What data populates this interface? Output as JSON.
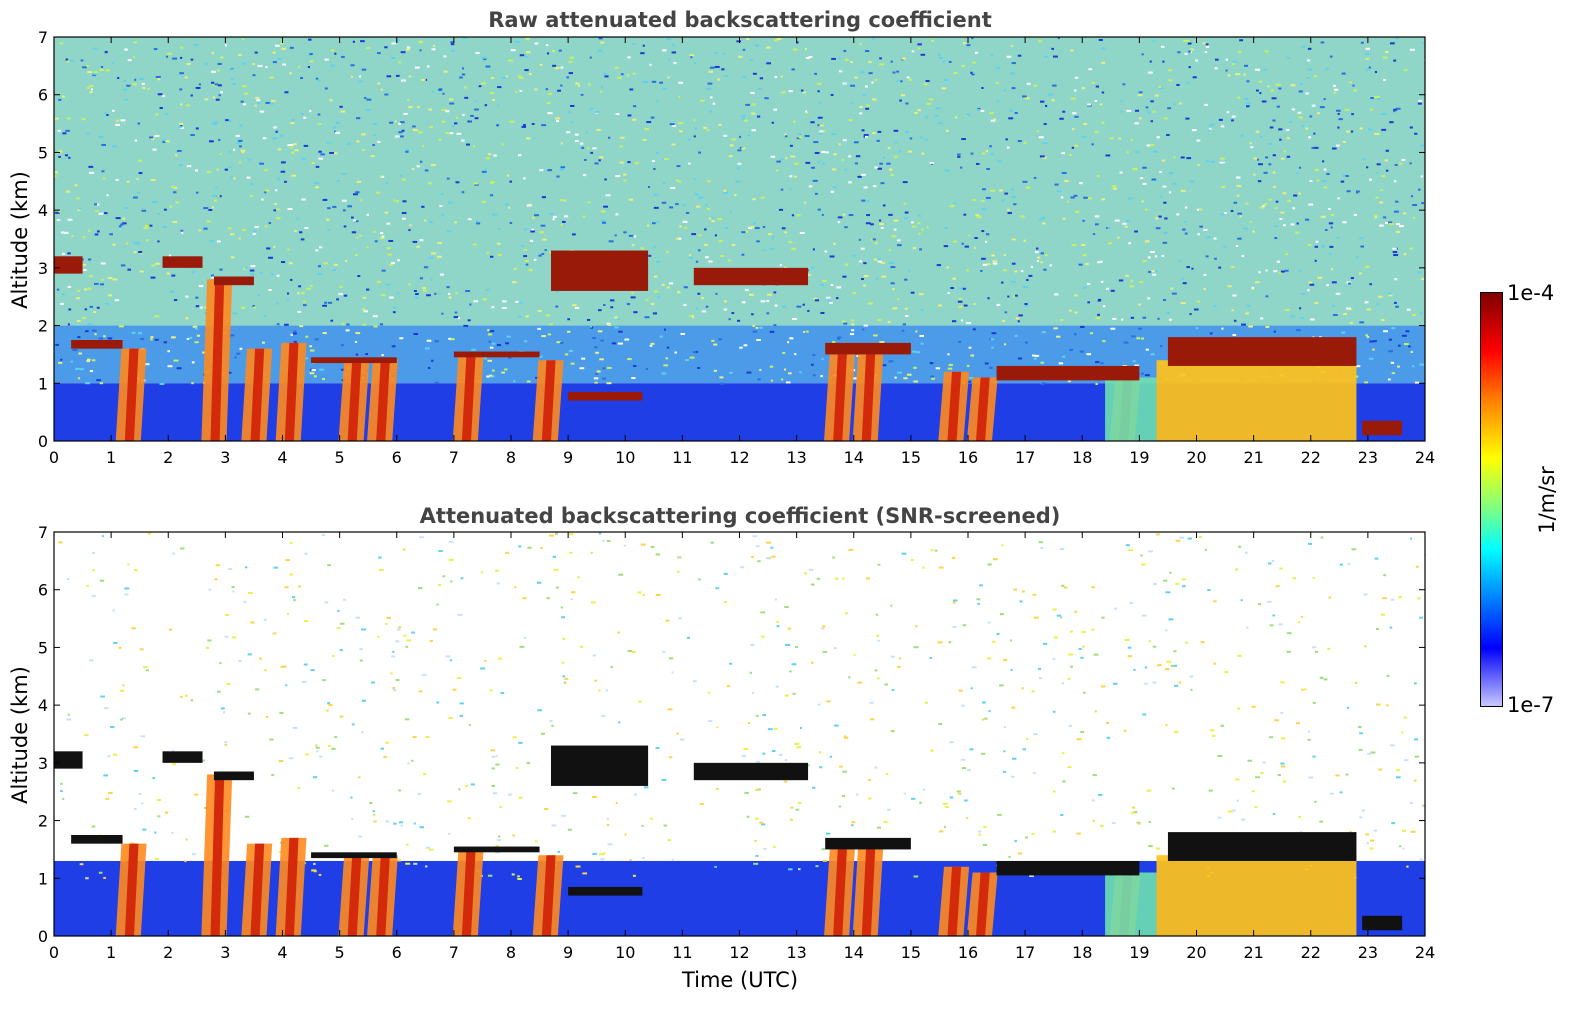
{
  "chart_data": [
    {
      "type": "heatmap",
      "title": "Raw attenuated backscattering coefficient",
      "xlabel": "",
      "ylabel": "Altitude (km)",
      "xlim": [
        0,
        24
      ],
      "ylim": [
        0,
        7
      ],
      "xticks": [
        "0",
        "1",
        "2",
        "3",
        "4",
        "5",
        "6",
        "7",
        "8",
        "9",
        "10",
        "11",
        "12",
        "13",
        "14",
        "15",
        "16",
        "17",
        "18",
        "19",
        "20",
        "21",
        "22",
        "23",
        "24"
      ],
      "yticks": [
        "0",
        "1",
        "2",
        "3",
        "4",
        "5",
        "6",
        "7"
      ],
      "screened": false,
      "cloud_layers": [
        {
          "t0": 0.0,
          "t1": 0.5,
          "z0": 2.9,
          "z1": 3.2
        },
        {
          "t0": 0.3,
          "t1": 1.2,
          "z0": 1.6,
          "z1": 1.75
        },
        {
          "t0": 1.9,
          "t1": 2.6,
          "z0": 3.0,
          "z1": 3.2
        },
        {
          "t0": 2.8,
          "t1": 3.5,
          "z0": 2.7,
          "z1": 2.85
        },
        {
          "t0": 4.5,
          "t1": 6.0,
          "z0": 1.35,
          "z1": 1.45
        },
        {
          "t0": 7.0,
          "t1": 8.5,
          "z0": 1.45,
          "z1": 1.55
        },
        {
          "t0": 8.7,
          "t1": 10.4,
          "z0": 2.6,
          "z1": 3.3
        },
        {
          "t0": 9.0,
          "t1": 10.3,
          "z0": 0.7,
          "z1": 0.85
        },
        {
          "t0": 11.2,
          "t1": 13.2,
          "z0": 2.7,
          "z1": 3.0
        },
        {
          "t0": 13.5,
          "t1": 15.0,
          "z0": 1.5,
          "z1": 1.7
        },
        {
          "t0": 16.5,
          "t1": 19.0,
          "z0": 1.05,
          "z1": 1.3
        },
        {
          "t0": 19.5,
          "t1": 22.8,
          "z0": 1.3,
          "z1": 1.8
        },
        {
          "t0": 22.9,
          "t1": 23.6,
          "z0": 0.1,
          "z1": 0.35
        }
      ],
      "precip_shafts": [
        {
          "t": 1.4,
          "z": 1.6
        },
        {
          "t": 2.9,
          "z": 2.8
        },
        {
          "t": 3.6,
          "z": 1.6
        },
        {
          "t": 4.2,
          "z": 1.7
        },
        {
          "t": 5.3,
          "z": 1.4
        },
        {
          "t": 5.8,
          "z": 1.4
        },
        {
          "t": 7.3,
          "z": 1.5
        },
        {
          "t": 8.7,
          "z": 1.4
        },
        {
          "t": 13.8,
          "z": 1.5
        },
        {
          "t": 14.3,
          "z": 1.6
        },
        {
          "t": 15.8,
          "z": 1.2
        },
        {
          "t": 16.3,
          "z": 1.1
        },
        {
          "t": 18.8,
          "z": 1.1
        }
      ]
    },
    {
      "type": "heatmap",
      "title": "Attenuated backscattering coefficient (SNR-screened)",
      "xlabel": "Time (UTC)",
      "ylabel": "Altitude (km)",
      "xlim": [
        0,
        24
      ],
      "ylim": [
        0,
        7
      ],
      "xticks": [
        "0",
        "1",
        "2",
        "3",
        "4",
        "5",
        "6",
        "7",
        "8",
        "9",
        "10",
        "11",
        "12",
        "13",
        "14",
        "15",
        "16",
        "17",
        "18",
        "19",
        "20",
        "21",
        "22",
        "23",
        "24"
      ],
      "yticks": [
        "0",
        "1",
        "2",
        "3",
        "4",
        "5",
        "6",
        "7"
      ],
      "screened": true
    }
  ],
  "colorbar": {
    "max_label": "1e-4",
    "min_label": "1e-7",
    "unit": "1/m/sr",
    "colormap": "jet",
    "scale": "log"
  }
}
